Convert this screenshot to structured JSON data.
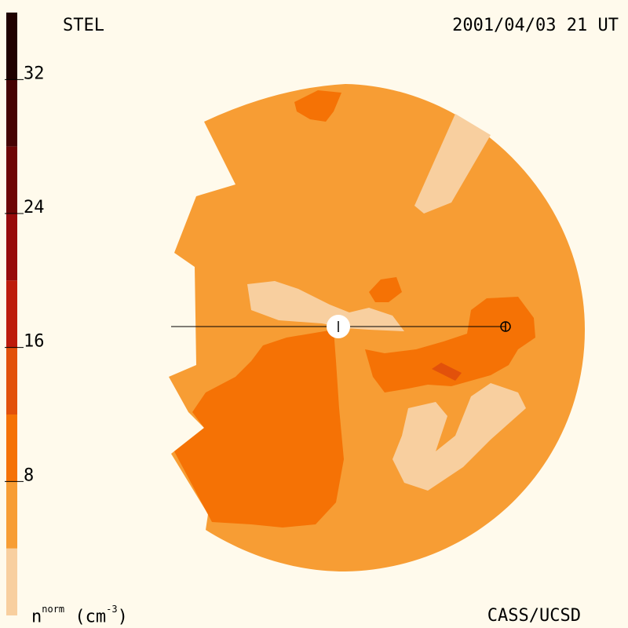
{
  "header": {
    "left_label": "STEL",
    "right_label": "2001/04/03 21 UT"
  },
  "footer": {
    "credit": "CASS/UCSD",
    "unit_base": "n",
    "unit_super": "norm",
    "unit_paren_open": " (cm",
    "unit_power": "-3",
    "unit_paren_close": ")"
  },
  "chart_data": {
    "type": "heatmap",
    "title": "STEL",
    "timestamp": "2001/04/03 21 UT",
    "colorbar": {
      "range": [
        0,
        36
      ],
      "ticks": [
        8,
        16,
        24,
        32
      ],
      "tick_labels": [
        "8",
        "16",
        "24",
        "32"
      ],
      "levels": [
        {
          "from": 0,
          "to": 4,
          "color": "#f8cf9f"
        },
        {
          "from": 4,
          "to": 8,
          "color": "#f79d34"
        },
        {
          "from": 8,
          "to": 12,
          "color": "#f57205"
        },
        {
          "from": 12,
          "to": 16,
          "color": "#e2510b"
        },
        {
          "from": 16,
          "to": 20,
          "color": "#bd1c0c"
        },
        {
          "from": 20,
          "to": 24,
          "color": "#970b0b"
        },
        {
          "from": 24,
          "to": 28,
          "color": "#6d0505"
        },
        {
          "from": 28,
          "to": 32,
          "color": "#450303"
        },
        {
          "from": 32,
          "to": 36,
          "color": "#1f0101"
        }
      ],
      "label": "n^norm (cm^-3)"
    },
    "background_level_color": "#f79d34",
    "markers": [
      "sun",
      "earth"
    ]
  }
}
